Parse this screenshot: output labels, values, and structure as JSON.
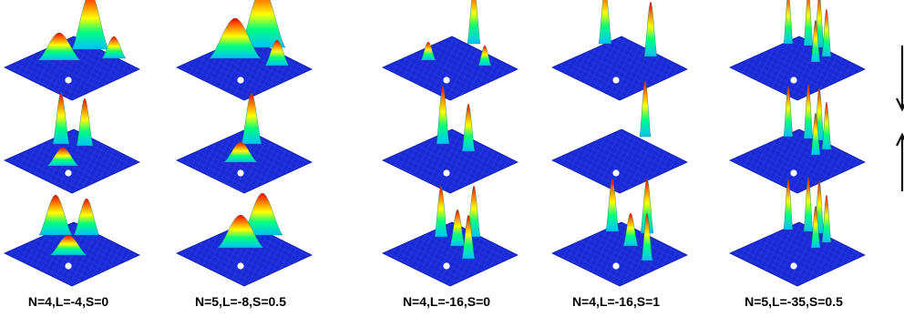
{
  "figure": {
    "columns": [
      {
        "label": "N=4,L=-4,S=0"
      },
      {
        "label": "N=5,L=-8,S=0.5"
      },
      {
        "label": "N=4,L=-16,S=0"
      },
      {
        "label": "N=4,L=-16,S=1"
      },
      {
        "label": "N=5,L=-35,S=0.5"
      }
    ],
    "rows": [
      {
        "name": "top",
        "side_arrow": "arrow-down-icon"
      },
      {
        "name": "middle",
        "side_arrow": "arrow-up-icon"
      },
      {
        "name": "bottom"
      }
    ],
    "colors": {
      "surface_base": "#1a2bd6",
      "surface_grid": "#3347ff",
      "impurity_marker": "#ffffff",
      "colormap": [
        "#0000ff",
        "#00bfff",
        "#00ff80",
        "#ffff00",
        "#ff8000",
        "#ff0000"
      ]
    }
  }
}
